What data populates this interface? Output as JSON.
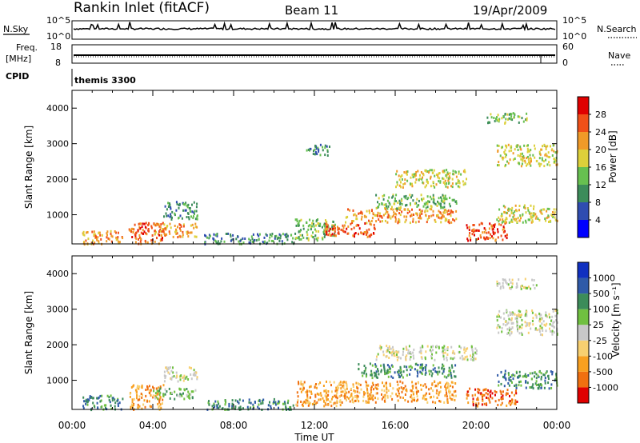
{
  "header": {
    "station": "Rankin Inlet (fitACF)",
    "beam": "Beam 11",
    "date": "19/Apr/2009"
  },
  "noise_panel": {
    "left_label": "N.Sky",
    "right_label": "N.Search",
    "left_ticks": [
      "10^5",
      "10^0"
    ],
    "right_ticks": [
      "10^5",
      "10^0"
    ]
  },
  "freq_panel": {
    "left_label_1": "Freq.",
    "left_label_2": "[MHz]",
    "right_label": "Nave",
    "left_ticks": [
      "18",
      "8"
    ],
    "right_ticks": [
      "60",
      "0"
    ]
  },
  "cpid": {
    "label": "CPID",
    "value": "themis 3300"
  },
  "chart_data": [
    {
      "type": "heatmap",
      "parameter": "Power",
      "ylabel": "Slant Range [km]",
      "ylim": [
        180,
        4500
      ],
      "yticks": [
        "1000",
        "2000",
        "3000",
        "4000"
      ],
      "xlim": [
        "00:00",
        "24:00"
      ],
      "colorbar": {
        "label": "Power [dB]",
        "colors": [
          "#0000ff",
          "#2f4cb0",
          "#3c8c5a",
          "#67c050",
          "#ddd03a",
          "#f09a28",
          "#f05018",
          "#e00000"
        ],
        "ticks": [
          "4",
          "8",
          "12",
          "16",
          "20",
          "24",
          "28"
        ]
      },
      "regions": [
        {
          "x": [
            0.5,
            2.5
          ],
          "y": [
            200,
            600
          ],
          "level": 5
        },
        {
          "x": [
            2.8,
            4.5
          ],
          "y": [
            200,
            800
          ],
          "level": 6
        },
        {
          "x": [
            4.0,
            6.2
          ],
          "y": [
            400,
            800
          ],
          "level": 5
        },
        {
          "x": [
            4.5,
            6.2
          ],
          "y": [
            900,
            1400
          ],
          "level": 2
        },
        {
          "x": [
            6.5,
            11.0
          ],
          "y": [
            200,
            500
          ],
          "level": 2
        },
        {
          "x": [
            11.0,
            13.0
          ],
          "y": [
            300,
            900
          ],
          "level": 3
        },
        {
          "x": [
            12.5,
            15.0
          ],
          "y": [
            400,
            800
          ],
          "level": 6
        },
        {
          "x": [
            13.5,
            19.0
          ],
          "y": [
            800,
            1200
          ],
          "level": 5
        },
        {
          "x": [
            15.0,
            19.0
          ],
          "y": [
            1200,
            1600
          ],
          "level": 3
        },
        {
          "x": [
            16.0,
            19.5
          ],
          "y": [
            1800,
            2300
          ],
          "level": 4
        },
        {
          "x": [
            19.5,
            21.5
          ],
          "y": [
            300,
            800
          ],
          "level": 6
        },
        {
          "x": [
            21.0,
            24.0
          ],
          "y": [
            800,
            1300
          ],
          "level": 4
        },
        {
          "x": [
            21.0,
            24.0
          ],
          "y": [
            2400,
            3000
          ],
          "level": 4
        },
        {
          "x": [
            20.5,
            22.5
          ],
          "y": [
            3600,
            3900
          ],
          "level": 3
        },
        {
          "x": [
            11.5,
            12.8
          ],
          "y": [
            2700,
            3000
          ],
          "level": 2
        }
      ]
    },
    {
      "type": "heatmap",
      "parameter": "Velocity",
      "ylabel": "Slant Range [km]",
      "xlabel": "Time UT",
      "ylim": [
        180,
        4500
      ],
      "yticks": [
        "1000",
        "2000",
        "3000",
        "4000"
      ],
      "xlim": [
        "00:00",
        "24:00"
      ],
      "xticks": [
        "00:00",
        "04:00",
        "08:00",
        "12:00",
        "16:00",
        "20:00",
        "00:00"
      ],
      "colorbar": {
        "label": "Velocity [m s⁻¹]",
        "colors": [
          "#e00000",
          "#f07010",
          "#f8a020",
          "#f8d070",
          "#c8c8c8",
          "#70c040",
          "#3c8c5a",
          "#2f5aa8",
          "#1030c0"
        ],
        "ticks": [
          "-1000",
          "-500",
          "-100",
          "-25",
          "25",
          "100",
          "500",
          "1000"
        ]
      },
      "regions": [
        {
          "x": [
            0.5,
            2.5
          ],
          "y": [
            200,
            600
          ],
          "level": 6
        },
        {
          "x": [
            2.8,
            4.5
          ],
          "y": [
            200,
            900
          ],
          "level": 2
        },
        {
          "x": [
            4.0,
            6.2
          ],
          "y": [
            500,
            800
          ],
          "level": 5
        },
        {
          "x": [
            4.5,
            6.2
          ],
          "y": [
            1000,
            1400
          ],
          "level": 4
        },
        {
          "x": [
            6.5,
            11.0
          ],
          "y": [
            200,
            500
          ],
          "level": 6
        },
        {
          "x": [
            11.0,
            13.5
          ],
          "y": [
            300,
            1000
          ],
          "level": 2
        },
        {
          "x": [
            13.0,
            19.0
          ],
          "y": [
            400,
            1000
          ],
          "level": 2
        },
        {
          "x": [
            14.0,
            19.0
          ],
          "y": [
            1100,
            1500
          ],
          "level": 6
        },
        {
          "x": [
            15.0,
            20.0
          ],
          "y": [
            1600,
            2000
          ],
          "level": 4
        },
        {
          "x": [
            19.5,
            22.0
          ],
          "y": [
            300,
            800
          ],
          "level": 1
        },
        {
          "x": [
            21.0,
            24.0
          ],
          "y": [
            800,
            1300
          ],
          "level": 6
        },
        {
          "x": [
            21.0,
            24.0
          ],
          "y": [
            2300,
            3000
          ],
          "level": 4
        },
        {
          "x": [
            21.0,
            23.0
          ],
          "y": [
            3600,
            3900
          ],
          "level": 4
        }
      ]
    }
  ]
}
